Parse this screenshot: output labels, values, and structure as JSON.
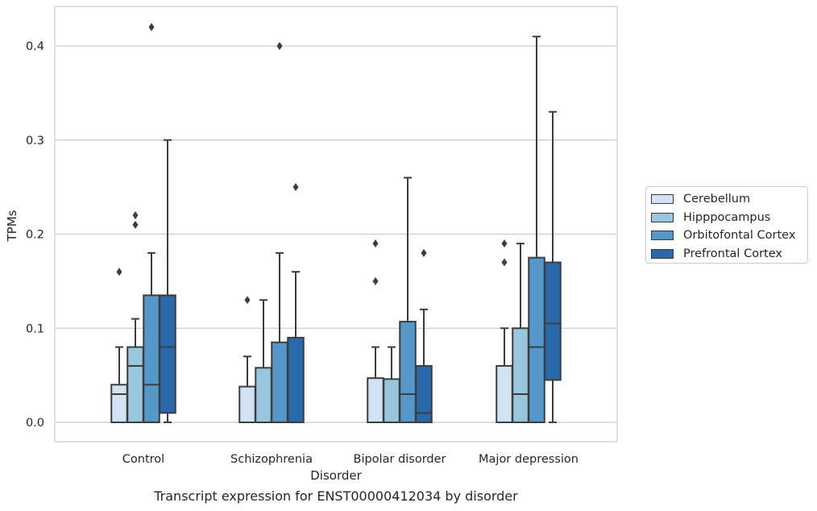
{
  "caption": "Transcript expression for ENST00000412034 by disorder",
  "chart_data": {
    "type": "box",
    "xlabel": "Disorder",
    "ylabel": "TPMs",
    "ylim": [
      -0.02,
      0.44
    ],
    "yticks": [
      0.0,
      0.1,
      0.2,
      0.3,
      0.4
    ],
    "ytick_labels": [
      "0.0",
      "0.1",
      "0.2",
      "0.3",
      "0.4"
    ],
    "grid": "horizontal",
    "legend_position": "right",
    "categories": [
      "Control",
      "Schizophrenia",
      "Bipolar disorder",
      "Major depression"
    ],
    "series": [
      {
        "name": "Cerebellum",
        "color": "#d1e2f2",
        "boxes": [
          {
            "whisker_low": 0.0,
            "q1": 0.0,
            "median": 0.03,
            "q3": 0.04,
            "whisker_high": 0.08,
            "outliers": [
              0.16
            ]
          },
          {
            "whisker_low": 0.0,
            "q1": 0.0,
            "median": 0.0,
            "q3": 0.038,
            "whisker_high": 0.07,
            "outliers": [
              0.13
            ]
          },
          {
            "whisker_low": 0.0,
            "q1": 0.0,
            "median": 0.0,
            "q3": 0.047,
            "whisker_high": 0.08,
            "outliers": [
              0.15,
              0.19
            ]
          },
          {
            "whisker_low": 0.0,
            "q1": 0.0,
            "median": 0.0,
            "q3": 0.06,
            "whisker_high": 0.1,
            "outliers": [
              0.17,
              0.19
            ]
          }
        ]
      },
      {
        "name": "Hipppocampus",
        "color": "#9ac5df",
        "boxes": [
          {
            "whisker_low": 0.0,
            "q1": 0.0,
            "median": 0.06,
            "q3": 0.08,
            "whisker_high": 0.11,
            "outliers": [
              0.21,
              0.22
            ]
          },
          {
            "whisker_low": 0.0,
            "q1": 0.0,
            "median": 0.0,
            "q3": 0.058,
            "whisker_high": 0.13,
            "outliers": []
          },
          {
            "whisker_low": 0.0,
            "q1": 0.0,
            "median": 0.0,
            "q3": 0.046,
            "whisker_high": 0.08,
            "outliers": []
          },
          {
            "whisker_low": 0.0,
            "q1": 0.0,
            "median": 0.03,
            "q3": 0.1,
            "whisker_high": 0.19,
            "outliers": []
          }
        ]
      },
      {
        "name": "Orbitofontal Cortex",
        "color": "#5597c9",
        "boxes": [
          {
            "whisker_low": 0.0,
            "q1": 0.0,
            "median": 0.04,
            "q3": 0.135,
            "whisker_high": 0.18,
            "outliers": [
              0.42
            ]
          },
          {
            "whisker_low": 0.0,
            "q1": 0.0,
            "median": 0.0,
            "q3": 0.085,
            "whisker_high": 0.18,
            "outliers": [
              0.4
            ]
          },
          {
            "whisker_low": 0.0,
            "q1": 0.0,
            "median": 0.03,
            "q3": 0.107,
            "whisker_high": 0.26,
            "outliers": []
          },
          {
            "whisker_low": 0.0,
            "q1": 0.0,
            "median": 0.08,
            "q3": 0.175,
            "whisker_high": 0.41,
            "outliers": []
          }
        ]
      },
      {
        "name": "Prefrontal Cortex",
        "color": "#2a68ac",
        "boxes": [
          {
            "whisker_low": 0.0,
            "q1": 0.01,
            "median": 0.08,
            "q3": 0.135,
            "whisker_high": 0.3,
            "outliers": []
          },
          {
            "whisker_low": 0.0,
            "q1": 0.0,
            "median": 0.0,
            "q3": 0.09,
            "whisker_high": 0.16,
            "outliers": [
              0.25
            ]
          },
          {
            "whisker_low": 0.0,
            "q1": 0.0,
            "median": 0.01,
            "q3": 0.06,
            "whisker_high": 0.12,
            "outliers": [
              0.18
            ]
          },
          {
            "whisker_low": 0.0,
            "q1": 0.045,
            "median": 0.105,
            "q3": 0.17,
            "whisker_high": 0.33,
            "outliers": []
          }
        ]
      }
    ]
  }
}
